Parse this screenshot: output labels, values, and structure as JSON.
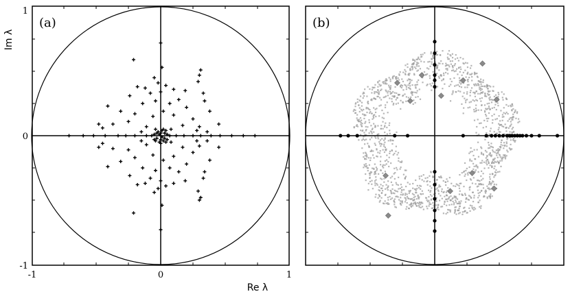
{
  "chart_data": [
    {
      "type": "scatter",
      "panel_label": "(a)",
      "xlabel": "Re λ",
      "ylabel": "Im λ",
      "xlim": [
        -1,
        1
      ],
      "ylim": [
        -1,
        1
      ],
      "xticks": [
        "-1",
        "0",
        "1"
      ],
      "yticks": [
        "1",
        "0",
        "-1"
      ],
      "unit_circle": true,
      "grid": false,
      "marker": "plus",
      "marker_color": "#000000",
      "series": [
        {
          "points": [
            [
              0.0,
              0.72
            ],
            [
              -0.21,
              0.59
            ],
            [
              0.01,
              0.53
            ],
            [
              0.31,
              0.51
            ],
            [
              0.3,
              0.47
            ],
            [
              -0.05,
              0.45
            ],
            [
              -0.02,
              0.41
            ],
            [
              0.29,
              0.42
            ],
            [
              -0.18,
              0.38
            ],
            [
              -0.12,
              0.37
            ],
            [
              0.04,
              0.39
            ],
            [
              0.1,
              0.36
            ],
            [
              0.19,
              0.35
            ],
            [
              0.33,
              0.33
            ],
            [
              -0.08,
              0.33
            ],
            [
              0.0,
              0.34
            ],
            [
              -0.24,
              0.31
            ],
            [
              0.14,
              0.28
            ],
            [
              -0.04,
              0.27
            ],
            [
              0.34,
              0.27
            ],
            [
              -0.41,
              0.23
            ],
            [
              -0.14,
              0.25
            ],
            [
              0.07,
              0.25
            ],
            [
              0.2,
              0.22
            ],
            [
              -0.31,
              0.19
            ],
            [
              0.02,
              0.19
            ],
            [
              0.38,
              0.19
            ],
            [
              -0.2,
              0.17
            ],
            [
              0.1,
              0.16
            ],
            [
              -0.06,
              0.15
            ],
            [
              0.25,
              0.13
            ],
            [
              -0.48,
              0.09
            ],
            [
              -0.37,
              0.09
            ],
            [
              -0.25,
              0.11
            ],
            [
              0.17,
              0.08
            ],
            [
              -0.11,
              0.07
            ],
            [
              0.3,
              0.07
            ],
            [
              0.45,
              0.09
            ],
            [
              -0.45,
              0.06
            ],
            [
              0.28,
              0.04
            ],
            [
              0.36,
              0.03
            ],
            [
              -0.15,
              0.03
            ],
            [
              0.08,
              0.05
            ],
            [
              -0.71,
              0.0
            ],
            [
              -0.6,
              0.0
            ],
            [
              -0.52,
              0.0
            ],
            [
              -0.43,
              0.0
            ],
            [
              -0.33,
              0.0
            ],
            [
              -0.27,
              0.0
            ],
            [
              -0.2,
              0.0
            ],
            [
              -0.11,
              0.0
            ],
            [
              -0.07,
              0.0
            ],
            [
              0.07,
              0.0
            ],
            [
              0.12,
              0.0
            ],
            [
              0.18,
              0.0
            ],
            [
              0.25,
              0.0
            ],
            [
              0.31,
              0.0
            ],
            [
              0.39,
              0.0
            ],
            [
              0.46,
              0.0
            ],
            [
              0.55,
              0.0
            ],
            [
              0.64,
              0.0
            ],
            [
              0.73,
              0.0
            ],
            [
              -0.04,
              0.05
            ],
            [
              -0.02,
              0.03
            ],
            [
              0.01,
              0.04
            ],
            [
              0.03,
              0.02
            ],
            [
              0.04,
              0.04
            ],
            [
              -0.03,
              0.02
            ],
            [
              0.02,
              0.05
            ],
            [
              0.0,
              0.02
            ],
            [
              -0.01,
              0.01
            ],
            [
              0.05,
              0.01
            ],
            [
              -0.05,
              0.01
            ],
            [
              0.01,
              -0.01
            ],
            [
              -0.03,
              -0.02
            ],
            [
              0.03,
              -0.02
            ],
            [
              -0.04,
              -0.04
            ],
            [
              0.0,
              -0.03
            ],
            [
              0.04,
              -0.05
            ],
            [
              -0.01,
              -0.05
            ],
            [
              0.02,
              -0.04
            ],
            [
              0.05,
              -0.03
            ],
            [
              -0.05,
              -0.03
            ],
            [
              0.0,
              -0.06
            ],
            [
              0.08,
              -0.05
            ],
            [
              -0.11,
              -0.07
            ],
            [
              -0.45,
              -0.06
            ],
            [
              0.28,
              -0.04
            ],
            [
              0.36,
              -0.04
            ],
            [
              -0.15,
              -0.04
            ],
            [
              -0.48,
              -0.09
            ],
            [
              -0.37,
              -0.1
            ],
            [
              -0.25,
              -0.11
            ],
            [
              0.17,
              -0.09
            ],
            [
              0.3,
              -0.08
            ],
            [
              0.45,
              -0.09
            ],
            [
              -0.06,
              -0.15
            ],
            [
              0.1,
              -0.16
            ],
            [
              0.25,
              -0.13
            ],
            [
              -0.31,
              -0.2
            ],
            [
              0.02,
              -0.19
            ],
            [
              0.38,
              -0.19
            ],
            [
              -0.2,
              -0.17
            ],
            [
              -0.41,
              -0.24
            ],
            [
              -0.14,
              -0.25
            ],
            [
              0.07,
              -0.25
            ],
            [
              0.2,
              -0.22
            ],
            [
              -0.24,
              -0.31
            ],
            [
              0.14,
              -0.28
            ],
            [
              -0.04,
              -0.27
            ],
            [
              0.34,
              -0.28
            ],
            [
              -0.18,
              -0.38
            ],
            [
              -0.08,
              -0.33
            ],
            [
              0.0,
              -0.35
            ],
            [
              0.33,
              -0.33
            ],
            [
              -0.12,
              -0.37
            ],
            [
              0.04,
              -0.39
            ],
            [
              0.1,
              -0.37
            ],
            [
              0.19,
              -0.35
            ],
            [
              -0.05,
              -0.44
            ],
            [
              -0.02,
              -0.41
            ],
            [
              0.29,
              -0.43
            ],
            [
              0.31,
              -0.48
            ],
            [
              0.3,
              -0.5
            ],
            [
              0.01,
              -0.54
            ],
            [
              -0.21,
              -0.6
            ],
            [
              0.0,
              -0.73
            ]
          ]
        }
      ]
    },
    {
      "type": "scatter",
      "panel_label": "(b)",
      "xlim": [
        -1,
        1
      ],
      "ylim": [
        -1,
        1
      ],
      "unit_circle": true,
      "grid": false,
      "series": [
        {
          "marker": "dense cloud",
          "marker_color": "#9e9e9e",
          "distribution": "annulus",
          "inner_radius": 0.29,
          "outer_radius": 0.62,
          "count": 1600
        },
        {
          "marker": "diamond",
          "marker_color": "#8a8a8a",
          "points": [
            [
              -0.29,
              0.41
            ],
            [
              0.05,
              0.31
            ],
            [
              0.37,
              0.56
            ],
            [
              0.48,
              0.28
            ],
            [
              -0.19,
              0.27
            ],
            [
              0.22,
              0.43
            ],
            [
              -0.38,
              -0.31
            ],
            [
              0.29,
              -0.29
            ],
            [
              0.46,
              -0.41
            ],
            [
              -0.36,
              -0.62
            ],
            [
              -0.1,
              0.47
            ],
            [
              0.12,
              -0.43
            ]
          ]
        },
        {
          "marker": "dot",
          "marker_color": "#000000",
          "points": [
            [
              -0.73,
              0.0
            ],
            [
              -0.67,
              0.0
            ],
            [
              -0.6,
              0.0
            ],
            [
              0.4,
              0.0
            ],
            [
              0.44,
              0.0
            ],
            [
              0.47,
              0.0
            ],
            [
              0.5,
              0.0
            ],
            [
              0.53,
              0.0
            ],
            [
              0.56,
              0.0
            ],
            [
              0.58,
              0.0
            ],
            [
              0.6,
              0.0
            ],
            [
              0.62,
              0.0
            ],
            [
              0.64,
              0.0
            ],
            [
              0.66,
              0.0
            ],
            [
              0.68,
              0.0
            ],
            [
              0.71,
              0.0
            ],
            [
              0.75,
              0.0
            ],
            [
              0.81,
              0.0
            ],
            [
              0.95,
              0.0
            ],
            [
              -0.31,
              0.0
            ],
            [
              -0.21,
              0.0
            ],
            [
              0.22,
              0.0
            ],
            [
              0.0,
              0.73
            ],
            [
              0.0,
              0.64
            ],
            [
              0.0,
              0.55
            ],
            [
              0.0,
              0.47
            ],
            [
              0.0,
              0.43
            ],
            [
              0.0,
              0.38
            ],
            [
              0.0,
              -0.28
            ],
            [
              0.0,
              -0.38
            ],
            [
              0.0,
              -0.49
            ],
            [
              0.0,
              -0.58
            ],
            [
              0.0,
              -0.66
            ],
            [
              0.0,
              -0.74
            ]
          ]
        }
      ]
    }
  ]
}
